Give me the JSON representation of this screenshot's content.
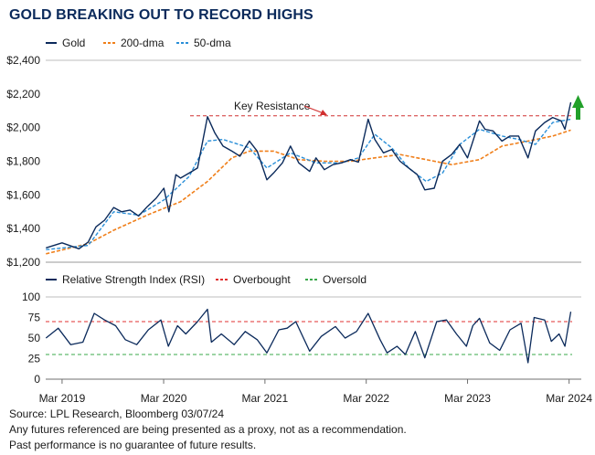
{
  "title": "GOLD BREAKING OUT TO RECORD HIGHS",
  "colors": {
    "gold": "#0b2a5b",
    "dma200": "#f07f1a",
    "dma50": "#2a8fd8",
    "overbought": "#e03030",
    "oversold": "#3aa84a",
    "resistance": "#d13030",
    "arrow": "#22a02a",
    "title": "#0b2a5b"
  },
  "chart_data": [
    {
      "type": "line",
      "legend": [
        "Gold",
        "200-dma",
        "50-dma"
      ],
      "legend_position": "top-left",
      "y_ticks": [
        "$2,400",
        "$2,200",
        "$2,000",
        "$1,800",
        "$1,600",
        "$1,400",
        "$1,200"
      ],
      "ylim": [
        1200,
        2400
      ],
      "x_range": [
        "2019-01",
        "2024-03"
      ],
      "annotation": "Key Resistance",
      "resistance_level": 2070,
      "series": [
        {
          "name": "Gold",
          "x": [
            "2019-01-02",
            "2019-03-01",
            "2019-05-01",
            "2019-06-03",
            "2019-07-01",
            "2019-08-01",
            "2019-09-03",
            "2019-10-01",
            "2019-11-01",
            "2019-12-02",
            "2020-01-02",
            "2020-02-03",
            "2020-03-02",
            "2020-03-20",
            "2020-04-14",
            "2020-05-01",
            "2020-06-01",
            "2020-07-01",
            "2020-08-06",
            "2020-09-01",
            "2020-10-01",
            "2020-11-02",
            "2020-12-01",
            "2021-01-04",
            "2021-02-01",
            "2021-03-08",
            "2021-04-01",
            "2021-05-03",
            "2021-06-01",
            "2021-07-01",
            "2021-08-09",
            "2021-09-01",
            "2021-10-01",
            "2021-11-01",
            "2021-12-01",
            "2022-01-03",
            "2022-02-01",
            "2022-03-08",
            "2022-04-01",
            "2022-05-02",
            "2022-06-01",
            "2022-07-01",
            "2022-08-01",
            "2022-09-01",
            "2022-09-28",
            "2022-11-01",
            "2022-12-01",
            "2023-01-03",
            "2023-02-01",
            "2023-03-01",
            "2023-04-13",
            "2023-05-03",
            "2023-06-01",
            "2023-07-03",
            "2023-08-01",
            "2023-09-01",
            "2023-10-05",
            "2023-11-01",
            "2023-12-04",
            "2024-01-02",
            "2024-02-01",
            "2024-02-15",
            "2024-03-07"
          ],
          "values": [
            1285,
            1315,
            1280,
            1320,
            1410,
            1450,
            1525,
            1500,
            1510,
            1475,
            1530,
            1580,
            1640,
            1500,
            1720,
            1700,
            1730,
            1760,
            2065,
            1970,
            1890,
            1860,
            1830,
            1920,
            1860,
            1690,
            1730,
            1790,
            1890,
            1790,
            1740,
            1820,
            1750,
            1780,
            1790,
            1810,
            1795,
            2050,
            1930,
            1850,
            1870,
            1800,
            1760,
            1720,
            1630,
            1640,
            1800,
            1840,
            1900,
            1820,
            2040,
            1990,
            1980,
            1920,
            1950,
            1950,
            1820,
            1980,
            2030,
            2060,
            2040,
            1990,
            2150
          ]
        },
        {
          "name": "200-dma",
          "x": [
            "2019-01-02",
            "2019-06-03",
            "2019-09-03",
            "2020-01-02",
            "2020-05-01",
            "2020-08-06",
            "2020-11-02",
            "2021-01-04",
            "2021-04-01",
            "2021-07-01",
            "2021-10-01",
            "2022-01-03",
            "2022-04-01",
            "2022-07-01",
            "2022-10-03",
            "2023-01-03",
            "2023-04-13",
            "2023-07-03",
            "2023-10-05",
            "2024-01-02",
            "2024-03-07"
          ],
          "values": [
            1250,
            1310,
            1390,
            1480,
            1560,
            1680,
            1820,
            1860,
            1860,
            1810,
            1800,
            1800,
            1820,
            1840,
            1810,
            1780,
            1810,
            1890,
            1920,
            1950,
            1985
          ]
        },
        {
          "name": "50-dma",
          "x": [
            "2019-01-02",
            "2019-06-03",
            "2019-09-03",
            "2019-12-02",
            "2020-03-02",
            "2020-06-01",
            "2020-08-06",
            "2020-10-01",
            "2021-01-04",
            "2021-03-08",
            "2021-06-01",
            "2021-09-01",
            "2021-12-01",
            "2022-02-01",
            "2022-04-01",
            "2022-06-01",
            "2022-08-01",
            "2022-10-03",
            "2022-12-01",
            "2023-02-01",
            "2023-04-13",
            "2023-07-03",
            "2023-09-01",
            "2023-11-01",
            "2024-01-02",
            "2024-03-07"
          ],
          "values": [
            1275,
            1300,
            1500,
            1480,
            1570,
            1710,
            1920,
            1930,
            1880,
            1760,
            1850,
            1790,
            1790,
            1820,
            1960,
            1880,
            1760,
            1680,
            1730,
            1900,
            1990,
            1950,
            1930,
            1900,
            2030,
            2050
          ]
        }
      ]
    },
    {
      "type": "line",
      "legend": [
        "Relative Strength Index (RSI)",
        "Overbought",
        "Oversold"
      ],
      "legend_position": "top-left",
      "y_ticks": [
        "100",
        "75",
        "50",
        "25",
        "0"
      ],
      "ylim": [
        0,
        100
      ],
      "x_tick_labels": [
        "Mar 2019",
        "Mar 2020",
        "Mar 2021",
        "Mar 2022",
        "Mar 2023",
        "Mar 2024"
      ],
      "overbought": 70,
      "oversold": 30,
      "series": [
        {
          "name": "Relative Strength Index (RSI)",
          "x": [
            "2019-01-02",
            "2019-02-15",
            "2019-04-01",
            "2019-05-15",
            "2019-06-25",
            "2019-08-01",
            "2019-09-10",
            "2019-10-15",
            "2019-11-25",
            "2020-01-06",
            "2020-02-20",
            "2020-03-18",
            "2020-04-20",
            "2020-05-20",
            "2020-07-01",
            "2020-08-06",
            "2020-08-20",
            "2020-09-25",
            "2020-11-10",
            "2020-12-20",
            "2021-02-01",
            "2021-03-08",
            "2021-04-20",
            "2021-05-20",
            "2021-06-20",
            "2021-08-09",
            "2021-09-20",
            "2021-11-10",
            "2021-12-15",
            "2022-01-25",
            "2022-03-08",
            "2022-04-20",
            "2022-05-15",
            "2022-06-20",
            "2022-07-20",
            "2022-08-25",
            "2022-09-28",
            "2022-11-10",
            "2022-12-15",
            "2023-01-20",
            "2023-02-25",
            "2023-03-20",
            "2023-04-13",
            "2023-05-20",
            "2023-06-25",
            "2023-08-01",
            "2023-09-10",
            "2023-10-05",
            "2023-10-27",
            "2023-12-04",
            "2023-12-28",
            "2024-01-25",
            "2024-02-15",
            "2024-03-07"
          ],
          "values": [
            50,
            62,
            42,
            45,
            80,
            72,
            65,
            48,
            42,
            60,
            72,
            40,
            65,
            55,
            70,
            85,
            45,
            55,
            42,
            58,
            48,
            32,
            60,
            62,
            70,
            34,
            52,
            64,
            50,
            58,
            80,
            48,
            32,
            40,
            30,
            58,
            26,
            70,
            72,
            55,
            40,
            65,
            74,
            44,
            35,
            60,
            68,
            20,
            75,
            72,
            46,
            55,
            40,
            82
          ]
        }
      ]
    }
  ],
  "footer": {
    "source": "Source: LPL Research, Bloomberg 03/07/24",
    "line2": "Any futures referenced are being presented as a proxy, not as a recommendation.",
    "line3": "Past performance is no guarantee of future results."
  }
}
